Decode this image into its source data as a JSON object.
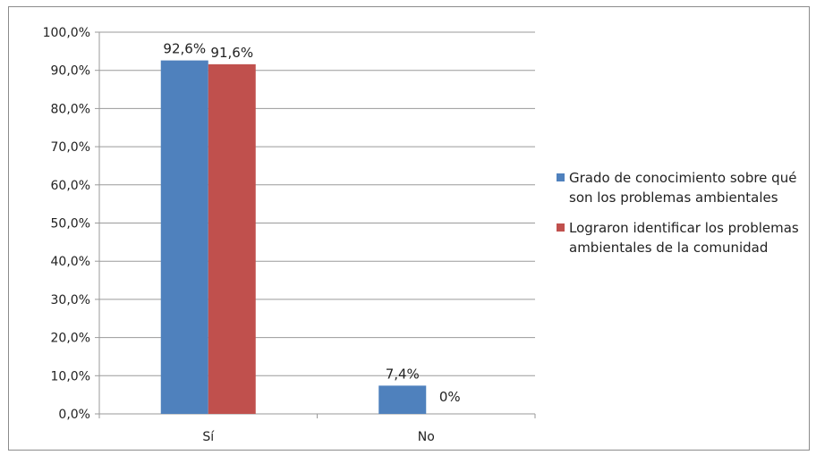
{
  "chart_data": {
    "type": "bar",
    "categories": [
      "Sí",
      "No"
    ],
    "series": [
      {
        "name": "Grado de conocimiento sobre qué son los problemas ambientales",
        "values": [
          92.6,
          7.4
        ],
        "labels": [
          "92,6%",
          "7,4%"
        ],
        "color": "#4f81bd"
      },
      {
        "name": "Lograron identificar los problemas ambientales de la comunidad",
        "values": [
          91.6,
          0
        ],
        "labels": [
          "91,6%",
          "0%"
        ],
        "color": "#c0504d"
      }
    ],
    "yticks": [
      "0,0%",
      "10,0%",
      "20,0%",
      "30,0%",
      "40,0%",
      "50,0%",
      "60,0%",
      "70,0%",
      "80,0%",
      "90,0%",
      "100,0%"
    ],
    "ylim": [
      0,
      100
    ],
    "grid": true,
    "legend_position": "right",
    "title": "",
    "xlabel": "",
    "ylabel": ""
  }
}
